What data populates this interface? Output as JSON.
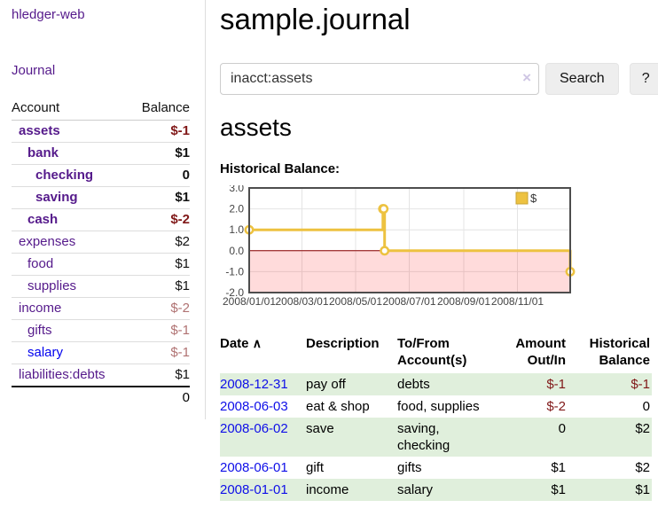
{
  "brand": "hledger-web",
  "sidebar": {
    "journal_link": "Journal",
    "accounts_table": {
      "headers": [
        "Account",
        "Balance"
      ],
      "rows": [
        {
          "name": "assets",
          "level": 1,
          "bold": true,
          "name_color": "#551a8b",
          "balance": "$-1",
          "balance_color": "#801818"
        },
        {
          "name": "bank",
          "level": 2,
          "bold": true,
          "name_color": "#551a8b",
          "balance": "$1",
          "balance_color": "#111111"
        },
        {
          "name": "checking",
          "level": 3,
          "bold": true,
          "name_color": "#551a8b",
          "balance": "0",
          "balance_color": "#111111"
        },
        {
          "name": "saving",
          "level": 3,
          "bold": true,
          "name_color": "#551a8b",
          "balance": "$1",
          "balance_color": "#111111"
        },
        {
          "name": "cash",
          "level": 2,
          "bold": true,
          "name_color": "#551a8b",
          "balance": "$-2",
          "balance_color": "#801818"
        },
        {
          "name": "expenses",
          "level": 1,
          "bold": false,
          "name_color": "#551a8b",
          "balance": "$2",
          "balance_color": "#111111"
        },
        {
          "name": "food",
          "level": 2,
          "bold": false,
          "name_color": "#551a8b",
          "balance": "$1",
          "balance_color": "#111111"
        },
        {
          "name": "supplies",
          "level": 2,
          "bold": false,
          "name_color": "#551a8b",
          "balance": "$1",
          "balance_color": "#111111"
        },
        {
          "name": "income",
          "level": 1,
          "bold": false,
          "name_color": "#551a8b",
          "balance": "$-2",
          "balance_color": "#b07272"
        },
        {
          "name": "gifts",
          "level": 2,
          "bold": false,
          "name_color": "#551a8b",
          "balance": "$-1",
          "balance_color": "#b07272"
        },
        {
          "name": "salary",
          "level": 2,
          "bold": false,
          "name_color": "#0000ee",
          "balance": "$-1",
          "balance_color": "#b07272"
        },
        {
          "name": "liabilities:debts",
          "level": 1,
          "bold": false,
          "name_color": "#551a8b",
          "balance": "$1",
          "balance_color": "#111111"
        }
      ],
      "total": "0"
    }
  },
  "header": {
    "title": "sample.journal"
  },
  "search": {
    "value": "inacct:assets",
    "clear_icon": "×",
    "button": "Search",
    "help_button": "?"
  },
  "account_page": {
    "heading": "assets",
    "chart_title": "Historical Balance:"
  },
  "chart_data": {
    "type": "line",
    "step": true,
    "title": "Historical Balance:",
    "x_range": [
      "2008-01-01",
      "2008-12-31"
    ],
    "ylim": [
      -2,
      3
    ],
    "x_tick_labels": [
      "2008/01/01",
      "2008/03/01",
      "2008/05/01",
      "2008/07/01",
      "2008/09/01",
      "2008/11/01"
    ],
    "y_tick_labels": [
      "3.0",
      "2.0",
      "1.0",
      "0.0",
      "-1.0",
      "-2.0"
    ],
    "series": [
      {
        "name": "$",
        "color": "#edc240",
        "points": [
          {
            "x": "2008-01-01",
            "y": 1
          },
          {
            "x": "2008-06-01",
            "y": 2
          },
          {
            "x": "2008-06-02",
            "y": 2
          },
          {
            "x": "2008-06-03",
            "y": 0
          },
          {
            "x": "2008-12-31",
            "y": -1
          }
        ]
      }
    ],
    "negative_region": {
      "from": 0,
      "to": -2,
      "fill": "rgba(255,0,0,0.14)",
      "zero_line_color": "#8b0000"
    },
    "legend": {
      "position": "top-right",
      "label": "$"
    },
    "grid": {
      "show": true,
      "color": "#e4e4e4",
      "border_color": "#4d4d4d"
    }
  },
  "register": {
    "sort_icon": "∧",
    "columns": [
      {
        "lines": [
          "Date"
        ],
        "align": "left",
        "sort": "asc"
      },
      {
        "lines": [
          "Description"
        ],
        "align": "left"
      },
      {
        "lines": [
          "To/From",
          "Account(s)"
        ],
        "align": "left"
      },
      {
        "lines": [
          "Amount",
          "Out/In"
        ],
        "align": "right"
      },
      {
        "lines": [
          "Historical",
          "Balance"
        ],
        "align": "right"
      }
    ],
    "rows": [
      {
        "date": "2008-12-31",
        "description": "pay off",
        "accounts": "debts",
        "amount": "$-1",
        "amount_negative": true,
        "balance": "$-1",
        "balance_negative": true
      },
      {
        "date": "2008-06-03",
        "description": "eat & shop",
        "accounts": "food, supplies",
        "amount": "$-2",
        "amount_negative": true,
        "balance": "0",
        "balance_negative": false
      },
      {
        "date": "2008-06-02",
        "description": "save",
        "accounts": "saving, checking",
        "amount": "0",
        "amount_negative": false,
        "balance": "$2",
        "balance_negative": false
      },
      {
        "date": "2008-06-01",
        "description": "gift",
        "accounts": "gifts",
        "amount": "$1",
        "amount_negative": false,
        "balance": "$2",
        "balance_negative": false
      },
      {
        "date": "2008-01-01",
        "description": "income",
        "accounts": "salary",
        "amount": "$1",
        "amount_negative": false,
        "balance": "$1",
        "balance_negative": false
      }
    ]
  },
  "colors": {
    "link_purple": "#551a8b",
    "link_blue": "#0000ee",
    "negative_red": "#801818",
    "dim_negative_red": "#b07272",
    "row_stripe_green": "#e0efdc",
    "series_gold": "#edc240",
    "negative_area_pink": "rgba(255,0,0,0.14)",
    "zero_line_red": "#8b0000"
  }
}
